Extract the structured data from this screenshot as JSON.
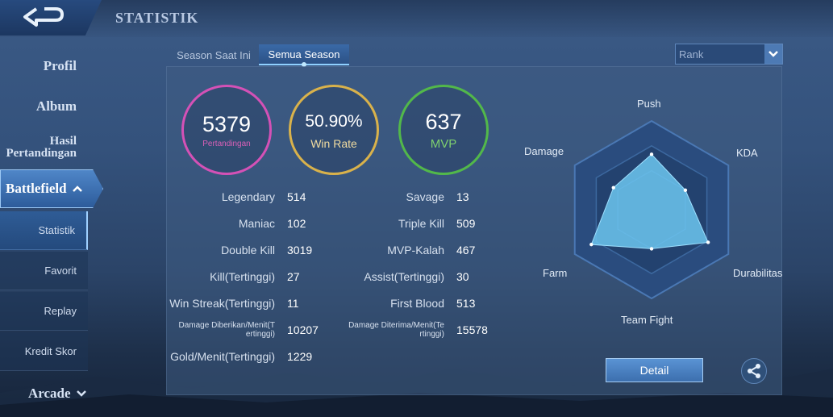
{
  "header": {
    "title": "STATISTIK"
  },
  "sidebar": {
    "profile": "Profil",
    "album": "Album",
    "match_history_line1": "Hasil",
    "match_history_line2": "Pertandingan",
    "battlefield": "Battlefield",
    "sub_items": [
      "Statistik",
      "Favorit",
      "Replay",
      "Kredit Skor"
    ],
    "arcade": "Arcade"
  },
  "tabs": [
    "Season Saat Ini",
    "Semua Season"
  ],
  "filter": {
    "selected": "Rank"
  },
  "summary": {
    "matches": {
      "value": "5379",
      "label": "Pertandingan"
    },
    "win_rate": {
      "value": "50.90%",
      "label": "Win Rate"
    },
    "mvp": {
      "value": "637",
      "label": "MVP"
    }
  },
  "stats_left": [
    {
      "label": "Legendary",
      "value": "514"
    },
    {
      "label": "Maniac",
      "value": "102"
    },
    {
      "label": "Double Kill",
      "value": "3019"
    },
    {
      "label": "Kill(Tertinggi)",
      "value": "27"
    },
    {
      "label": "Win Streak(Tertinggi)",
      "value": "11"
    },
    {
      "label_line1": "Damage Diberikan/Menit(T",
      "label_line2": "ertinggi)",
      "value": "10207"
    },
    {
      "label": "Gold/Menit(Tertinggi)",
      "value": "1229"
    }
  ],
  "stats_right": [
    {
      "label": "Savage",
      "value": "13"
    },
    {
      "label": "Triple Kill",
      "value": "509"
    },
    {
      "label": "MVP-Kalah",
      "value": "467"
    },
    {
      "label": "Assist(Tertinggi)",
      "value": "30"
    },
    {
      "label": "First Blood",
      "value": "513"
    },
    {
      "label_line1": "Damage Diterima/Menit(Te",
      "label_line2": "rtinggi)",
      "value": "15578"
    }
  ],
  "radar": {
    "axes": [
      "Push",
      "KDA",
      "Durabilitas",
      "Team Fight",
      "Farm",
      "Damage"
    ],
    "values": [
      0.78,
      0.55,
      0.92,
      0.55,
      0.98,
      0.62
    ]
  },
  "actions": {
    "detail": "Detail"
  },
  "colors": {
    "matches": "#d451b6",
    "win_rate": "#d9b24b",
    "mvp": "#52b84a",
    "radar_fill": "#6cc6f0"
  }
}
